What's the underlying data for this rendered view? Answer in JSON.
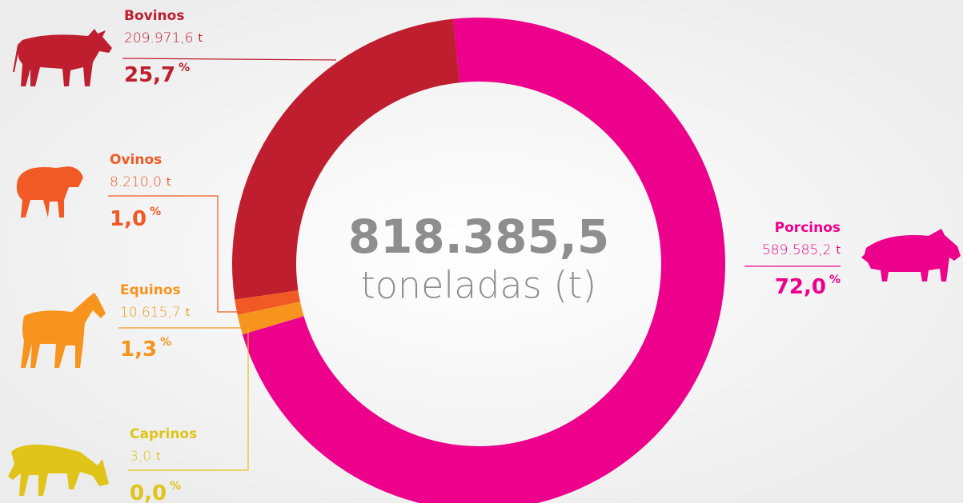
{
  "chart_data": {
    "type": "pie",
    "donut": true,
    "center_value": 818385.5,
    "center_value_label": "818.385,5",
    "center_label": "toneladas (t)",
    "unit": "t",
    "percent_unit": "%",
    "categories": [
      "Bovinos",
      "Ovinos",
      "Equinos",
      "Caprinos",
      "Porcinos"
    ],
    "values": [
      209971.6,
      8210.0,
      10615.7,
      3.0,
      589585.2
    ],
    "value_labels": [
      "209.971,6",
      "8.210,0",
      "10.615,7",
      "3,0",
      "589.585,2"
    ],
    "percents": [
      25.7,
      1.0,
      1.3,
      0.0,
      72.0
    ],
    "percent_labels": [
      "25,7",
      "1,0",
      "1,3",
      "0,0",
      "72,0"
    ],
    "colors": [
      "#be1e2d",
      "#f15a24",
      "#f7941d",
      "#e0c419",
      "#ec008c"
    ]
  }
}
